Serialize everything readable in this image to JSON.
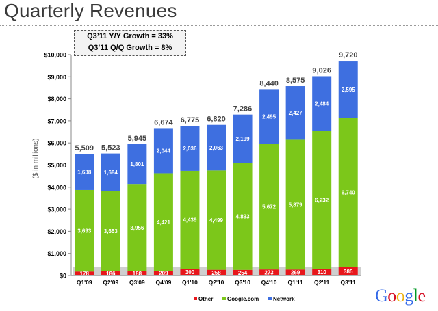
{
  "page": {
    "title": "Quarterly Revenues"
  },
  "growth_box": {
    "line1": "Q3’11 Y/Y Growth = 33%",
    "line2": "Q3’11 Q/Q Growth = 8%"
  },
  "logo": {
    "text": "Google",
    "colors": [
      "#3369e8",
      "#d50f25",
      "#eeb211",
      "#3369e8",
      "#009925",
      "#d50f25"
    ]
  },
  "colors": {
    "other": "#e8161b",
    "google": "#7cc71a",
    "network": "#3e6fe0",
    "grey_band": "#cfcfcf"
  },
  "chart_data": {
    "type": "bar",
    "stacked": true,
    "title": "",
    "xlabel": "",
    "ylabel": "($ in millions)",
    "ylim": [
      0,
      10000
    ],
    "yticks": [
      "$0",
      "$1,000",
      "$2,000",
      "$3,000",
      "$4,000",
      "$5,000",
      "$6,000",
      "$7,000",
      "$8,000",
      "$9,000",
      "$10,000"
    ],
    "categories": [
      "Q1'09",
      "Q2'09",
      "Q3'09",
      "Q4'09",
      "Q1'10",
      "Q2'10",
      "Q3'10",
      "Q4'10",
      "Q1'11",
      "Q2'11",
      "Q3'11"
    ],
    "series": [
      {
        "name": "Other",
        "values": [
          178,
          186,
          188,
          209,
          300,
          258,
          254,
          273,
          269,
          310,
          385
        ],
        "labels": [
          "178",
          "186",
          "188",
          "209",
          "300",
          "258",
          "254",
          "273",
          "269",
          "310",
          "385"
        ]
      },
      {
        "name": "Google.com",
        "values": [
          3693,
          3653,
          3956,
          4421,
          4439,
          4499,
          4833,
          5672,
          5879,
          6232,
          6740
        ],
        "labels": [
          "3,693",
          "3,653",
          "3,956",
          "4,421",
          "4,439",
          "4,499",
          "4,833",
          "5,672",
          "5,879",
          "6,232",
          "6,740"
        ]
      },
      {
        "name": "Network",
        "values": [
          1638,
          1684,
          1801,
          2044,
          2036,
          2063,
          2199,
          2495,
          2427,
          2484,
          2595
        ],
        "labels": [
          "1,638",
          "1,684",
          "1,801",
          "2,044",
          "2,036",
          "2,063",
          "2,199",
          "2,495",
          "2,427",
          "2,484",
          "2,595"
        ]
      }
    ],
    "totals": [
      5509,
      5523,
      5945,
      6674,
      6775,
      6820,
      7286,
      8440,
      8575,
      9026,
      9720
    ],
    "total_labels": [
      "5,509",
      "5,523",
      "5,945",
      "6,674",
      "6,775",
      "6,820",
      "7,286",
      "8,440",
      "8,575",
      "9,026",
      "9,720"
    ],
    "legend": {
      "position": "bottom",
      "entries": [
        "Other",
        "Google.com",
        "Network"
      ]
    }
  }
}
